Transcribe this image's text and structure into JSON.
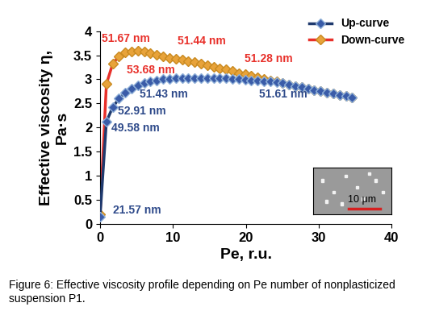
{
  "chart_data": {
    "type": "line",
    "caption": "Figure 6: Effective viscosity profile depending on Pe number of nonplasticized suspension P1.",
    "x_label": "Pe, r.u.",
    "y_label": "Effective viscosity η,\nPa·s",
    "x": [
      0,
      0.87,
      1.73,
      2.6,
      3.46,
      4.33,
      5.19,
      6.06,
      6.92,
      7.79,
      8.65,
      9.52,
      10.38,
      11.25,
      12.11,
      12.98,
      13.84,
      14.71,
      15.57,
      16.44,
      17.3,
      18.17,
      19.03,
      19.9,
      20.76,
      21.63,
      22.49,
      23.36,
      24.22,
      25.09,
      25.95,
      26.82,
      27.68,
      28.55,
      29.41,
      30.28,
      31.14,
      32.01,
      32.87,
      33.74,
      34.6
    ],
    "series": [
      {
        "name": "Up-curve",
        "color": "#1f3a6e",
        "marker": "D",
        "values": [
          0.15,
          2.12,
          2.42,
          2.6,
          2.72,
          2.8,
          2.87,
          2.92,
          2.95,
          2.98,
          3.0,
          3.01,
          3.02,
          3.03,
          3.03,
          3.03,
          3.03,
          3.03,
          3.03,
          3.02,
          3.02,
          3.01,
          3.0,
          2.99,
          2.98,
          2.97,
          2.96,
          2.95,
          2.94,
          2.92,
          2.89,
          2.86,
          2.84,
          2.81,
          2.78,
          2.76,
          2.73,
          2.7,
          2.68,
          2.65,
          2.62
        ]
      },
      {
        "name": "Down-curve",
        "color": "#e8302a",
        "marker": "D",
        "values": [
          0.2,
          2.9,
          3.32,
          3.48,
          3.56,
          3.58,
          3.6,
          3.57,
          3.54,
          3.51,
          3.48,
          3.45,
          3.43,
          3.4,
          3.37,
          3.35,
          3.32,
          3.29,
          3.26,
          3.23,
          3.2,
          3.17,
          3.13,
          3.1,
          3.07,
          3.04,
          3.01,
          2.98,
          2.95,
          2.93,
          2.89,
          2.86,
          2.84,
          2.81,
          2.78,
          2.76,
          2.73,
          2.7,
          2.68,
          2.65,
          2.62
        ]
      }
    ],
    "annotations": [
      {
        "text": "51.67 nm",
        "series": "Down-curve"
      },
      {
        "text": "51.44 nm",
        "series": "Down-curve"
      },
      {
        "text": "53.68 nm",
        "series": "Down-curve"
      },
      {
        "text": "51.28 nm",
        "series": "Down-curve"
      },
      {
        "text": "51.43 nm",
        "series": "Up-curve"
      },
      {
        "text": "52.91 nm",
        "series": "Up-curve"
      },
      {
        "text": "49.58 nm",
        "series": "Up-curve"
      },
      {
        "text": "51.61 nm",
        "series": "Up-curve"
      },
      {
        "text": "21.57 nm",
        "series": "Up-curve"
      }
    ],
    "inset_label": "10 μm",
    "xlim": [
      0,
      40
    ],
    "xticks": [
      0,
      10,
      20,
      30,
      40
    ],
    "ylim": [
      0,
      4
    ],
    "yticks": [
      0,
      0.5,
      1,
      1.5,
      2,
      2.5,
      3,
      3.5,
      4
    ],
    "legend": "upper right",
    "grid": false
  }
}
